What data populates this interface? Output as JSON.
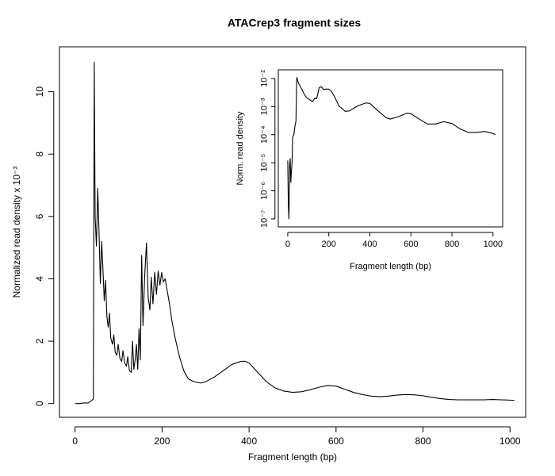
{
  "chart_data": [
    {
      "type": "line",
      "title": "ATACrep3 fragment sizes",
      "xlabel": "Fragment length (bp)",
      "ylabel": "Normalized read density x 10⁻³",
      "color": "#000000",
      "log_y": false,
      "x": [
        0,
        10,
        20,
        30,
        38,
        42,
        44,
        46,
        49,
        52,
        55,
        58,
        61,
        64,
        67,
        70,
        73,
        76,
        79,
        82,
        86,
        89,
        92,
        96,
        99,
        103,
        107,
        110,
        114,
        118,
        121,
        125,
        129,
        132,
        135,
        138,
        141,
        144,
        147,
        150,
        153,
        156,
        160,
        164,
        168,
        172,
        175,
        179,
        183,
        187,
        191,
        195,
        199,
        203,
        207,
        212,
        217,
        222,
        230,
        240,
        250,
        260,
        270,
        280,
        290,
        300,
        320,
        340,
        360,
        380,
        390,
        400,
        420,
        440,
        460,
        480,
        500,
        520,
        540,
        560,
        580,
        600,
        620,
        640,
        660,
        680,
        700,
        720,
        740,
        760,
        780,
        800,
        820,
        840,
        860,
        880,
        900,
        920,
        940,
        960,
        980,
        1000,
        1010
      ],
      "values": [
        0,
        0,
        0.02,
        0.02,
        0.1,
        0.15,
        10.95,
        6,
        5.05,
        6.9,
        5.5,
        3.85,
        5.2,
        4.3,
        3.3,
        3.95,
        2.8,
        2.45,
        2.9,
        2.1,
        1.9,
        2.2,
        1.65,
        1.55,
        1.9,
        1.45,
        1.35,
        1.7,
        1.3,
        1.2,
        1.5,
        1.05,
        1.0,
        2.0,
        1.1,
        1.4,
        1.9,
        1.1,
        2.4,
        1.4,
        4.75,
        2.5,
        4.1,
        5.15,
        3.4,
        3.0,
        4.05,
        3.2,
        4.2,
        3.5,
        4.25,
        3.8,
        4.2,
        3.9,
        4.0,
        3.6,
        3.2,
        2.7,
        2.1,
        1.5,
        1.05,
        0.8,
        0.72,
        0.68,
        0.66,
        0.7,
        0.85,
        1.05,
        1.25,
        1.35,
        1.36,
        1.3,
        1.0,
        0.7,
        0.5,
        0.4,
        0.36,
        0.38,
        0.44,
        0.52,
        0.58,
        0.56,
        0.46,
        0.36,
        0.29,
        0.24,
        0.22,
        0.24,
        0.27,
        0.29,
        0.28,
        0.25,
        0.2,
        0.16,
        0.13,
        0.12,
        0.12,
        0.12,
        0.12,
        0.13,
        0.12,
        0.11,
        0.1
      ],
      "xlim": [
        -36,
        1036
      ],
      "ylim": [
        -0.44,
        11.44
      ],
      "xticks": [
        0,
        200,
        400,
        600,
        800,
        1000
      ],
      "yticks": [
        0,
        2,
        4,
        6,
        8,
        10
      ]
    },
    {
      "type": "line",
      "xlabel": "Fragment length (bp)",
      "ylabel": "Norm. read density",
      "color": "#000000",
      "log_y": true,
      "x": [
        0,
        3,
        6,
        9,
        12,
        15,
        18,
        21,
        24,
        27,
        30,
        35,
        40,
        44,
        52,
        61,
        70,
        79,
        89,
        99,
        110,
        121,
        132,
        141,
        153,
        164,
        175,
        183,
        191,
        199,
        212,
        230,
        250,
        280,
        300,
        340,
        380,
        400,
        440,
        480,
        500,
        540,
        580,
        600,
        640,
        680,
        720,
        760,
        800,
        840,
        880,
        920,
        960,
        1000,
        1010
      ],
      "values": [
        1.2e-05,
        3e-07,
        1e-07,
        8e-06,
        1.4e-05,
        2e-06,
        5e-06,
        1e-05,
        8e-05,
        9e-05,
        0.0001,
        0.0002,
        0.0003,
        0.0109,
        0.0069,
        0.0052,
        0.00395,
        0.0029,
        0.0022,
        0.0019,
        0.0017,
        0.0015,
        0.002,
        0.0019,
        0.0047,
        0.0051,
        0.004,
        0.0042,
        0.0042,
        0.0042,
        0.0036,
        0.0021,
        0.00105,
        0.00068,
        0.0007,
        0.00105,
        0.00135,
        0.0013,
        0.0007,
        0.0004,
        0.00036,
        0.00044,
        0.00058,
        0.00056,
        0.00036,
        0.00024,
        0.00024,
        0.00029,
        0.00025,
        0.00016,
        0.00012,
        0.00012,
        0.00013,
        0.00011,
        0.0001
      ],
      "xlim": [
        -46,
        1047
      ],
      "ylim": [
        5.2e-08,
        0.0204
      ],
      "xticks": [
        0,
        200,
        400,
        600,
        800,
        1000
      ],
      "yticks": [
        {
          "value": 0.01,
          "label": "10⁻²"
        },
        {
          "value": 0.001,
          "label": "10⁻³"
        },
        {
          "value": 0.0001,
          "label": "10⁻⁴"
        },
        {
          "value": 1e-05,
          "label": "10⁻⁵"
        },
        {
          "value": 1e-06,
          "label": "10⁻⁶"
        },
        {
          "value": 1e-07,
          "label": "10⁻⁷"
        }
      ]
    }
  ]
}
